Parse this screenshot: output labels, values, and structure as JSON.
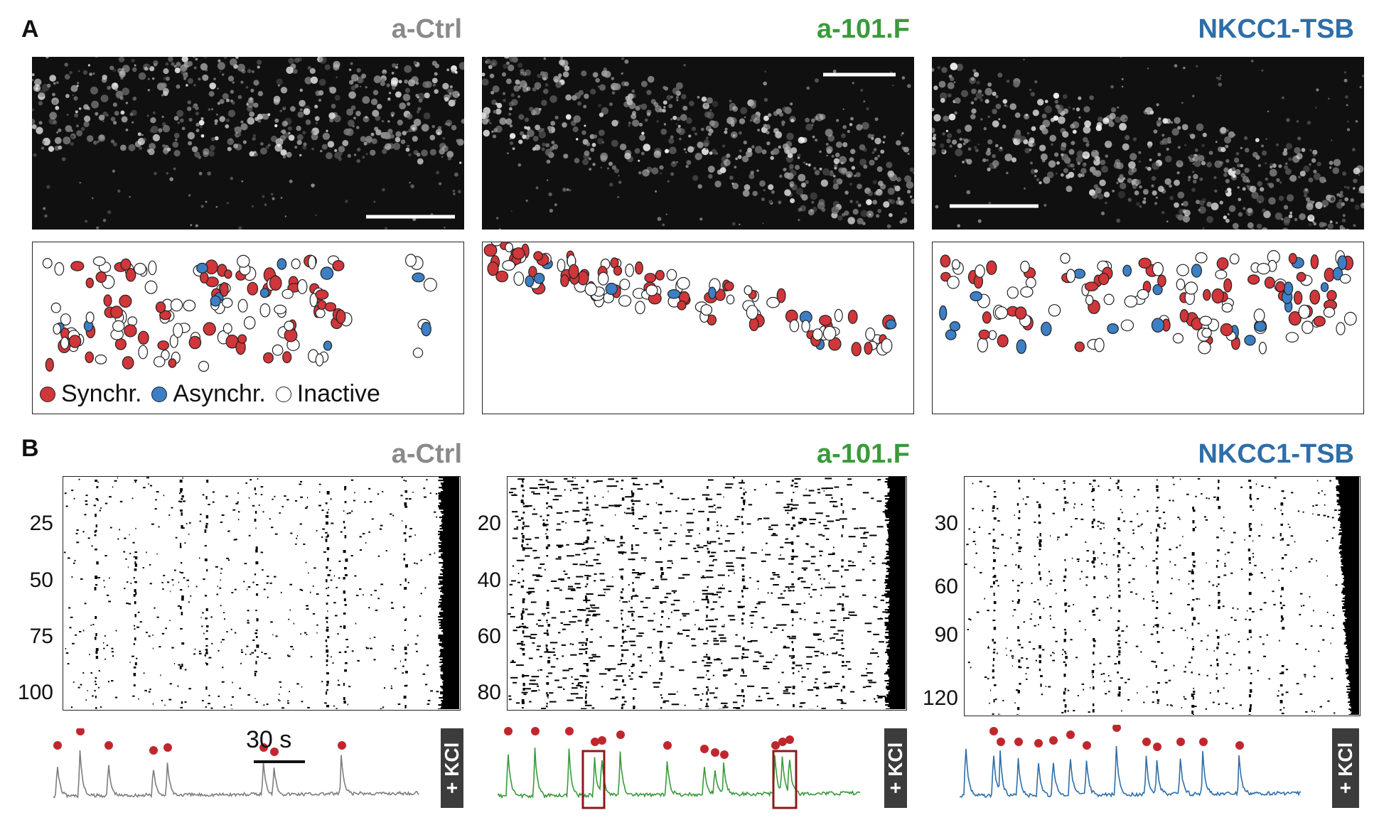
{
  "panels": {
    "A": "A",
    "B": "B"
  },
  "conditions": [
    {
      "name": "a-Ctrl",
      "color": "#8a8a8a"
    },
    {
      "name": "a-101.F",
      "color": "#3a9a3a"
    },
    {
      "name": "NKCC1-TSB",
      "color": "#2e6ea8"
    }
  ],
  "legend": {
    "synchr": "Synchr.",
    "asynchr": "Asynchr.",
    "inactive": "Inactive",
    "synchr_color": "#d0363a",
    "asynchr_color": "#3c7fc4"
  },
  "rasters": [
    {
      "ticks": [
        "25",
        "50",
        "75",
        "100"
      ]
    },
    {
      "ticks": [
        "20",
        "40",
        "60",
        "80"
      ]
    },
    {
      "ticks": [
        "30",
        "60",
        "90",
        "120"
      ]
    }
  ],
  "kcl_label": "+ KCl",
  "scale_bar_label": "30 s",
  "colors": {
    "peak_dot": "#c0272d",
    "highlight_box": "#8b1a1a"
  }
}
